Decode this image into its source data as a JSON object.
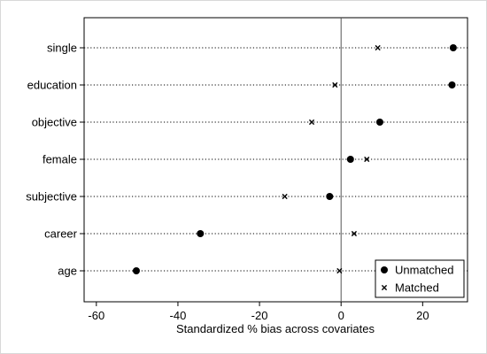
{
  "chart_data": {
    "type": "scatter",
    "title": "",
    "xlabel": "Standardized % bias across covariates",
    "ylabel": "",
    "xlim": [
      -63,
      31
    ],
    "xticks": [
      -60,
      -40,
      -20,
      0,
      20
    ],
    "reference_line_x": 0,
    "categories": [
      "single",
      "education",
      "objective",
      "female",
      "subjective",
      "career",
      "age"
    ],
    "series": [
      {
        "name": "Unmatched",
        "marker": "circle",
        "values": [
          27.5,
          27.2,
          9.5,
          2.3,
          -2.8,
          -34.5,
          -50.2
        ]
      },
      {
        "name": "Matched",
        "marker": "x",
        "values": [
          9.0,
          -1.5,
          -7.2,
          6.3,
          -13.8,
          3.2,
          -0.4
        ]
      }
    ],
    "grid": "dotted horizontal guide lines per category",
    "legend_position": "bottom-right"
  }
}
